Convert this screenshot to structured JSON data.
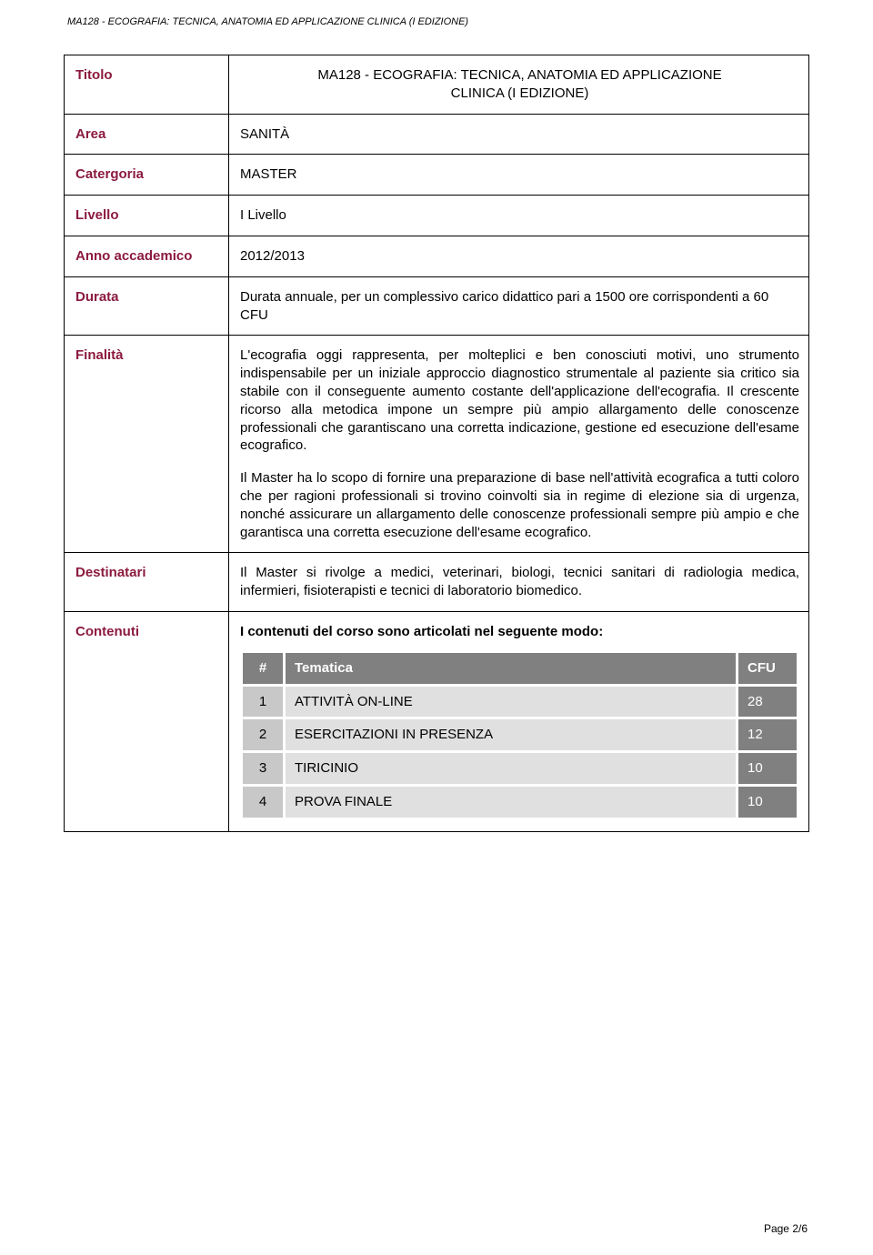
{
  "header": "MA128 - ECOGRAFIA: TECNICA, ANATOMIA ED APPLICAZIONE CLINICA (I EDIZIONE)",
  "rows": {
    "titolo": {
      "label": "Titolo",
      "line1": "MA128 - ECOGRAFIA: TECNICA, ANATOMIA ED APPLICAZIONE",
      "line2": "CLINICA (I EDIZIONE)"
    },
    "area": {
      "label": "Area",
      "value": "SANITÀ"
    },
    "catergoria": {
      "label": "Catergoria",
      "value": "MASTER"
    },
    "livello": {
      "label": "Livello",
      "value": "I Livello"
    },
    "anno": {
      "label": "Anno accademico",
      "value": "2012/2013"
    },
    "durata": {
      "label": "Durata",
      "value": "Durata annuale, per un complessivo carico didattico pari a 1500 ore corrispondenti a 60 CFU"
    },
    "finalita": {
      "label": "Finalità",
      "p1": "L'ecografia oggi rappresenta, per molteplici e ben conosciuti motivi, uno strumento indispensabile per un iniziale approccio diagnostico strumentale al paziente sia critico sia stabile con il conseguente aumento costante dell'applicazione dell'ecografia. Il crescente ricorso alla metodica impone  un sempre più ampio allargamento delle conoscenze professionali che garantiscano una corretta indicazione, gestione ed esecuzione dell'esame ecografico.",
      "p2": "Il Master ha lo scopo di fornire una preparazione di base nell'attività ecografica a tutti coloro che per ragioni professionali si trovino coinvolti sia in regime di elezione sia di urgenza, nonché assicurare un allargamento delle conoscenze professionali sempre più ampio e che garantisca una corretta esecuzione dell'esame ecografico."
    },
    "destinatari": {
      "label": "Destinatari",
      "value": "Il Master si rivolge a medici, veterinari, biologi, tecnici sanitari di radiologia medica, infermieri, fisioterapisti e tecnici di laboratorio biomedico."
    },
    "contenuti": {
      "label": "Contenuti",
      "intro": "I contenuti del corso sono articolati nel seguente modo:",
      "columns": {
        "num": "#",
        "topic": "Tematica",
        "cfu": "CFU"
      },
      "items": [
        {
          "n": "1",
          "topic": "ATTIVITÀ ON-LINE",
          "cfu": "28"
        },
        {
          "n": "2",
          "topic": "ESERCITAZIONI IN PRESENZA",
          "cfu": "12"
        },
        {
          "n": "3",
          "topic": "TIRICINIO",
          "cfu": "10"
        },
        {
          "n": "4",
          "topic": "PROVA FINALE",
          "cfu": "10"
        }
      ]
    }
  },
  "footer": "Page 2/6"
}
